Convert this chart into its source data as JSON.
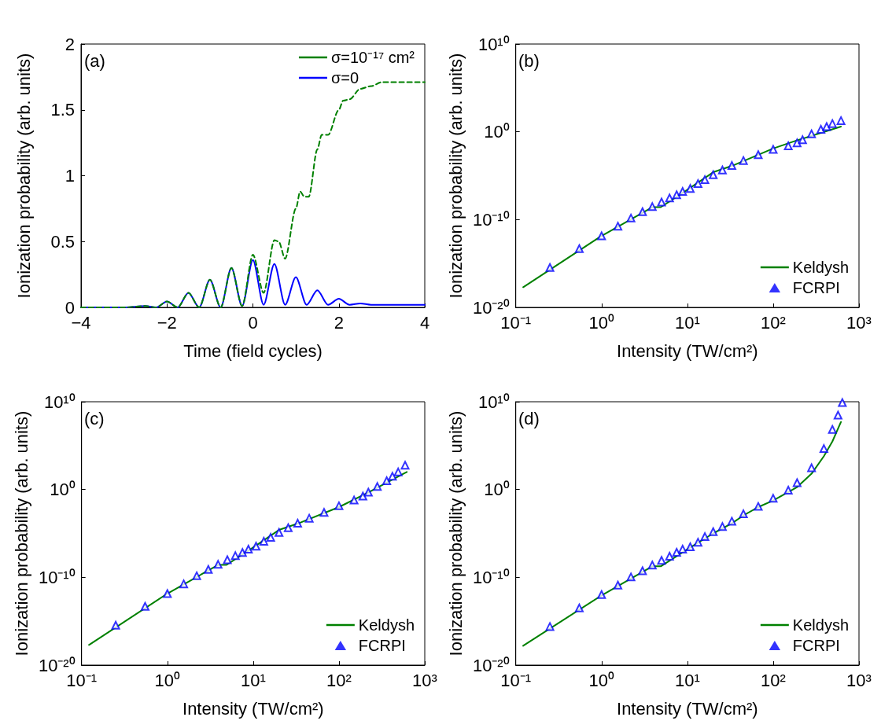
{
  "chart_data": [
    {
      "type": "line",
      "xlabel": "Time (field cycles)",
      "ylabel": "Ionization probability (arb. units)",
      "annotations": [
        "(a)"
      ],
      "xlim": [
        -4,
        4
      ],
      "xticks": [
        {
          "value": -4,
          "label": "−4"
        },
        {
          "value": -2,
          "label": "−2"
        },
        0,
        2,
        4
      ],
      "ylim": [
        0,
        2
      ],
      "yticks": [
        0,
        0.5,
        1,
        1.5,
        2
      ],
      "grid": false,
      "legend": "top right",
      "marker": "none",
      "series": [
        {
          "name": "σ=10⁻¹⁷ cm²",
          "color": "#008000",
          "line_style": "dashed",
          "x": [
            -4,
            -3,
            -2.5,
            -2.25,
            -2,
            -1.75,
            -1.5,
            -1.25,
            -1,
            -0.75,
            -0.5,
            -0.25,
            0,
            0.25,
            0.5,
            0.6,
            0.75,
            1,
            1.1,
            1.2,
            1.3,
            1.5,
            1.6,
            1.75,
            2,
            2.1,
            2.25,
            2.5,
            2.75,
            3,
            4
          ],
          "values": [
            0,
            0,
            0.01,
            0,
            0.045,
            0,
            0.11,
            0,
            0.21,
            0,
            0.3,
            0.01,
            0.4,
            0.11,
            0.51,
            0.5,
            0.37,
            0.75,
            0.88,
            0.84,
            0.84,
            1.2,
            1.31,
            1.31,
            1.5,
            1.57,
            1.58,
            1.66,
            1.68,
            1.71,
            1.71
          ]
        },
        {
          "name": "σ=0",
          "color": "#0000ff",
          "line_style": "solid",
          "x": [
            -4,
            -3,
            -2.5,
            -2.25,
            -2,
            -1.75,
            -1.5,
            -1.25,
            -1,
            -0.75,
            -0.5,
            -0.25,
            0,
            0.25,
            0.5,
            0.75,
            1,
            1.25,
            1.5,
            1.75,
            2,
            2.25,
            2.5,
            2.75,
            3,
            4
          ],
          "values": [
            0,
            0,
            0.01,
            0,
            0.045,
            0,
            0.11,
            0,
            0.21,
            0,
            0.3,
            0.01,
            0.36,
            0.02,
            0.33,
            0.02,
            0.23,
            0.02,
            0.13,
            0.02,
            0.065,
            0.02,
            0.03,
            0.02,
            0.02,
            0.02
          ]
        }
      ]
    },
    {
      "type": "line",
      "xlabel": "Intensity (TW/cm²)",
      "ylabel": "Ionization probability (arb. units)",
      "annotations": [
        "(b)"
      ],
      "log": "xy",
      "xlim": [
        0.1,
        1000
      ],
      "xticks": [
        {
          "value": 0.1,
          "label": "10⁻¹"
        },
        {
          "value": 1,
          "label": "10⁰"
        },
        {
          "value": 10,
          "label": "10¹"
        },
        {
          "value": 100,
          "label": "10²"
        },
        {
          "value": 1000,
          "label": "10³"
        }
      ],
      "ylim": [
        1e-20,
        10000000000.0
      ],
      "yticks": [
        {
          "value": 1e-20,
          "label": "10⁻²⁰"
        },
        {
          "value": 1e-10,
          "label": "10⁻¹⁰"
        },
        {
          "value": 1,
          "label": "10⁰"
        },
        {
          "value": 10000000000.0,
          "label": "10¹⁰"
        }
      ],
      "grid": false,
      "legend": "bottom right",
      "series": [
        {
          "name": "Keldysh",
          "color": "#008000",
          "type": "line",
          "marker": "none",
          "x": [
            0.122,
            1,
            3.9,
            4.9,
            10,
            20,
            33,
            100,
            174,
            617
          ],
          "values": [
            2e-18,
            1.4e-12,
            2.6e-09,
            2.6e-09,
            2.5e-07,
            2.5e-05,
            0.00013,
            0.0126,
            0.08,
            4
          ]
        },
        {
          "name": "FCRPI",
          "color": "#0000ff",
          "type": "scatter",
          "marker": "triangle",
          "x": [
            0.25,
            0.55,
            1,
            1.55,
            2.2,
            3,
            3.9,
            5,
            6.2,
            7.5,
            8.8,
            10.8,
            13.3,
            16,
            20,
            25.6,
            33,
            45,
            67,
            100,
            150,
            190,
            220,
            280,
            360,
            420,
            490,
            617
          ],
          "values": [
            3.5e-16,
            5e-14,
            1.4e-12,
            1.8e-11,
            1.5e-10,
            8e-10,
            3e-09,
            1e-08,
            2.9e-08,
            6.8e-08,
            1.6e-07,
            3.5e-07,
            1.3e-06,
            3.5e-06,
            1.3e-05,
            4.5e-05,
            0.000145,
            0.00054,
            0.0025,
            0.01,
            0.025,
            0.056,
            0.125,
            0.58,
            1.9,
            4,
            8.7,
            19
          ]
        }
      ]
    },
    {
      "type": "line",
      "xlabel": "Intensity (TW/cm²)",
      "ylabel": "Ionization probability (arb. units)",
      "annotations": [
        "(c)"
      ],
      "log": "xy",
      "xlim": [
        0.1,
        1000
      ],
      "xticks": [
        {
          "value": 0.1,
          "label": "10⁻¹"
        },
        {
          "value": 1,
          "label": "10⁰"
        },
        {
          "value": 10,
          "label": "10¹"
        },
        {
          "value": 100,
          "label": "10²"
        },
        {
          "value": 1000,
          "label": "10³"
        }
      ],
      "ylim": [
        1e-20,
        10000000000.0
      ],
      "yticks": [
        {
          "value": 1e-20,
          "label": "10⁻²⁰"
        },
        {
          "value": 1e-10,
          "label": "10⁻¹⁰"
        },
        {
          "value": 1,
          "label": "10⁰"
        },
        {
          "value": 10000000000.0,
          "label": "10¹⁰"
        }
      ],
      "grid": false,
      "legend": "bottom right",
      "series": [
        {
          "name": "Keldysh",
          "color": "#008000",
          "type": "line",
          "marker": "none",
          "x": [
            0.122,
            1,
            3.9,
            4.9,
            10,
            20,
            33,
            100,
            220,
            617
          ],
          "values": [
            2e-18,
            1.4e-12,
            2.6e-09,
            2.6e-09,
            2.5e-07,
            2.5e-05,
            0.00013,
            0.01,
            0.46,
            100
          ]
        },
        {
          "name": "FCRPI",
          "color": "#0000ff",
          "type": "scatter",
          "marker": "triangle",
          "x": [
            0.25,
            0.55,
            1,
            1.55,
            2.2,
            3,
            3.9,
            5,
            6.2,
            7.5,
            8.8,
            10.8,
            13.3,
            16,
            20,
            25.6,
            33,
            45,
            67,
            100,
            150,
            190,
            220,
            280,
            360,
            420,
            490,
            590
          ],
          "values": [
            3.5e-16,
            5e-14,
            1.4e-12,
            1.8e-11,
            1.5e-10,
            8e-10,
            3e-09,
            1e-08,
            2.9e-08,
            6.8e-08,
            1.6e-07,
            3.5e-07,
            1.3e-06,
            3.5e-06,
            1.3e-05,
            4.5e-05,
            0.000145,
            0.00054,
            0.0025,
            0.014,
            0.063,
            0.18,
            0.5,
            2.2,
            10,
            32,
            100,
            590
          ]
        }
      ]
    },
    {
      "type": "line",
      "xlabel": "Intensity (TW/cm²)",
      "ylabel": "Ionization probability (arb. units)",
      "annotations": [
        "(d)"
      ],
      "log": "xy",
      "xlim": [
        0.1,
        1000
      ],
      "xticks": [
        {
          "value": 0.1,
          "label": "10⁻¹"
        },
        {
          "value": 1,
          "label": "10⁰"
        },
        {
          "value": 10,
          "label": "10¹"
        },
        {
          "value": 100,
          "label": "10²"
        },
        {
          "value": 1000,
          "label": "10³"
        }
      ],
      "ylim": [
        1e-20,
        10000000000.0
      ],
      "yticks": [
        {
          "value": 1e-20,
          "label": "10⁻²⁰"
        },
        {
          "value": 1e-10,
          "label": "10⁻¹⁰"
        },
        {
          "value": 1,
          "label": "10⁰"
        },
        {
          "value": 10000000000.0,
          "label": "10¹⁰"
        }
      ],
      "grid": false,
      "legend": "bottom right",
      "series": [
        {
          "name": "Keldysh",
          "color": "#008000",
          "type": "line",
          "marker": "none",
          "x": [
            0.122,
            1,
            3.9,
            4.9,
            10,
            20,
            33,
            45,
            67,
            100,
            190,
            280,
            390,
            490,
            617
          ],
          "values": [
            1.6e-18,
            8.7e-13,
            1.8e-09,
            1.8e-09,
            1.6e-07,
            1e-05,
            0.00014,
            0.0011,
            0.01,
            0.056,
            1.9,
            63,
            6300,
            300000.0,
            50000000.0
          ]
        },
        {
          "name": "FCRPI",
          "color": "#0000ff",
          "type": "scatter",
          "marker": "triangle",
          "x": [
            0.25,
            0.55,
            1,
            1.55,
            2.2,
            3,
            3.9,
            5,
            6.2,
            7.5,
            8.8,
            10.8,
            13.3,
            16,
            20,
            25.6,
            33,
            45,
            67,
            100,
            150,
            190,
            280,
            390,
            490,
            570,
            640
          ],
          "values": [
            2.5e-16,
            3.2e-14,
            1.1e-12,
            1.3e-11,
            1.1e-10,
            5.5e-10,
            2.5e-09,
            8.5e-09,
            2.5e-08,
            7e-08,
            1.6e-07,
            3e-07,
            1e-06,
            4.3e-06,
            1.6e-05,
            6e-05,
            0.00025,
            0.0017,
            0.012,
            0.1,
            0.85,
            6,
            300,
            46000.0,
            7000000.0,
            300000000.0,
            8000000000.0
          ]
        }
      ]
    }
  ]
}
